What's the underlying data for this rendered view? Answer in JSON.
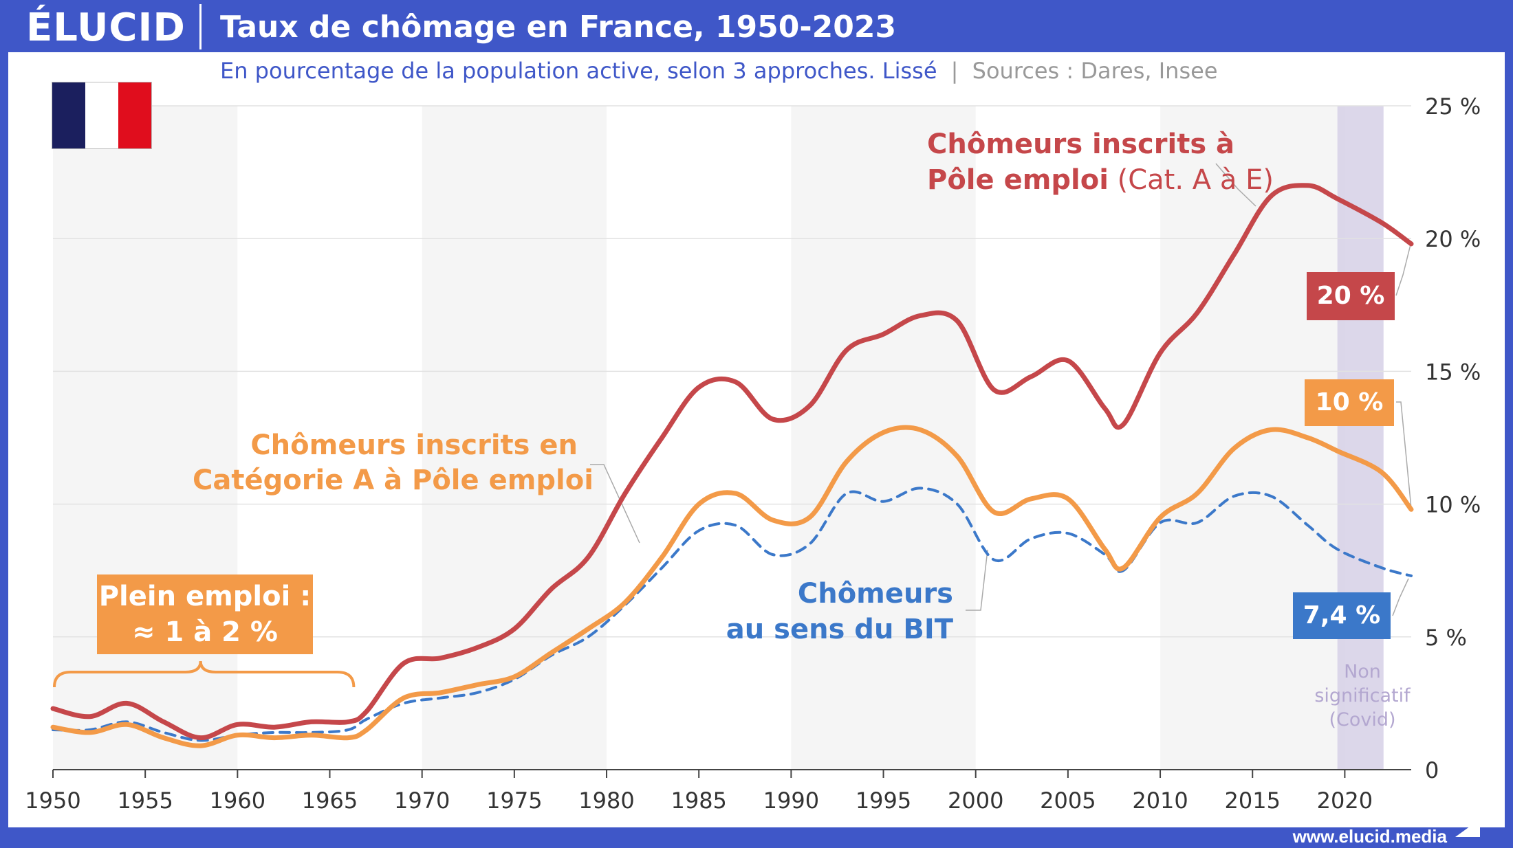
{
  "header": {
    "logo": "ÉLUCID",
    "title": "Taux de chômage en France, 1950-2023"
  },
  "subtitle": {
    "main": "En pourcentage de la population active, selon 3 approches. Lissé",
    "separator": "|",
    "sources": "Sources : Dares, Insee"
  },
  "footer": {
    "url": "www.elucid.media"
  },
  "flag": {
    "colors": [
      "#1b1f5e",
      "#ffffff",
      "#e00d1d"
    ]
  },
  "colors": {
    "pole_emploi_ae": "#c5474a",
    "cat_a": "#f39a48",
    "bit": "#3b78c9",
    "covid_band": "#d6d0e6",
    "alt_band": "#f5f5f5",
    "frame": "#3f57c8"
  },
  "annotations": {
    "ae_line1": "Chômeurs inscrits à",
    "ae_line2_bold": "Pôle emploi",
    "ae_line2_light": " (Cat. A à E)",
    "cata_line1": "Chômeurs inscrits en",
    "cata_line2": "Catégorie A à Pôle emploi",
    "bit_line1": "Chômeurs",
    "bit_line2": "au sens du BIT",
    "plein_line1": "Plein emploi :",
    "plein_line2": "≈ 1 à 2 %",
    "covid_line1": "Non",
    "covid_line2": "significatif",
    "covid_line3": "(Covid)"
  },
  "badges": {
    "ae": "20 %",
    "cata": "10 %",
    "bit": "7,4 %"
  },
  "chart_data": {
    "type": "line",
    "x_range": [
      1950,
      2023.6
    ],
    "ylim": [
      0,
      25
    ],
    "y_ticks": [
      0,
      5,
      10,
      15,
      20,
      25
    ],
    "y_tick_labels": [
      "0",
      "5 %",
      "10 %",
      "15 %",
      "20 %",
      "25 %"
    ],
    "x_ticks": [
      1950,
      1955,
      1960,
      1965,
      1970,
      1975,
      1980,
      1985,
      1990,
      1995,
      2000,
      2005,
      2010,
      2015,
      2020
    ],
    "shaded_decades": [
      [
        1950,
        1960
      ],
      [
        1970,
        1980
      ],
      [
        1990,
        2000
      ],
      [
        2010,
        2020
      ]
    ],
    "covid_band": [
      2019.6,
      2022.1
    ],
    "grid": true,
    "series": [
      {
        "name": "Chômeurs inscrits à Pôle emploi (Cat. A à E)",
        "color": "#c5474a",
        "dashed": false,
        "x": [
          1950,
          1952,
          1954,
          1956,
          1958,
          1960,
          1962,
          1964,
          1966,
          1967,
          1969,
          1971,
          1973,
          1975,
          1977,
          1979,
          1981,
          1983,
          1985,
          1987,
          1989,
          1991,
          1993,
          1995,
          1997,
          1999,
          2001,
          2003,
          2005,
          2007,
          2008,
          2010,
          2012,
          2014,
          2016,
          2018,
          2019.6,
          2022,
          2023.6
        ],
        "y": [
          2.3,
          2.0,
          2.5,
          1.8,
          1.2,
          1.7,
          1.6,
          1.8,
          1.8,
          2.2,
          4.0,
          4.2,
          4.6,
          5.3,
          6.8,
          8.0,
          10.4,
          12.5,
          14.4,
          14.6,
          13.2,
          13.7,
          15.8,
          16.4,
          17.1,
          16.9,
          14.3,
          14.8,
          15.4,
          13.6,
          13.0,
          15.7,
          17.2,
          19.4,
          21.6,
          22.0,
          21.5,
          20.6,
          19.8
        ]
      },
      {
        "name": "Chômeurs inscrits en Catégorie A à Pôle emploi",
        "color": "#f39a48",
        "dashed": false,
        "x": [
          1950,
          1952,
          1954,
          1956,
          1958,
          1960,
          1962,
          1964,
          1966,
          1967,
          1969,
          1971,
          1973,
          1975,
          1977,
          1979,
          1981,
          1983,
          1985,
          1987,
          1989,
          1991,
          1993,
          1995,
          1997,
          1999,
          2001,
          2003,
          2005,
          2007,
          2008,
          2010,
          2012,
          2014,
          2016,
          2018,
          2019.6,
          2022,
          2023.6
        ],
        "y": [
          1.6,
          1.4,
          1.7,
          1.2,
          0.9,
          1.3,
          1.2,
          1.3,
          1.2,
          1.5,
          2.7,
          2.9,
          3.2,
          3.5,
          4.4,
          5.3,
          6.3,
          8.0,
          10.0,
          10.4,
          9.4,
          9.5,
          11.6,
          12.7,
          12.8,
          11.8,
          9.7,
          10.2,
          10.2,
          8.3,
          7.6,
          9.5,
          10.4,
          12.1,
          12.8,
          12.5,
          12.0,
          11.2,
          9.8
        ]
      },
      {
        "name": "Chômeurs au sens du BIT",
        "color": "#3b78c9",
        "dashed": true,
        "x": [
          1950,
          1952,
          1954,
          1956,
          1958,
          1960,
          1962,
          1964,
          1966,
          1967,
          1969,
          1971,
          1973,
          1975,
          1977,
          1979,
          1981,
          1983,
          1985,
          1987,
          1989,
          1991,
          1993,
          1995,
          1997,
          1999,
          2001,
          2003,
          2005,
          2007,
          2008,
          2010,
          2012,
          2014,
          2016,
          2018,
          2019.6,
          2022,
          2023.6
        ],
        "y": [
          1.5,
          1.5,
          1.8,
          1.4,
          1.1,
          1.3,
          1.4,
          1.4,
          1.5,
          1.9,
          2.5,
          2.7,
          2.9,
          3.4,
          4.3,
          5.0,
          6.2,
          7.6,
          9.0,
          9.2,
          8.1,
          8.5,
          10.4,
          10.1,
          10.6,
          10.0,
          7.9,
          8.7,
          8.9,
          8.1,
          7.5,
          9.3,
          9.3,
          10.3,
          10.3,
          9.2,
          8.3,
          7.6,
          7.3
        ]
      }
    ]
  }
}
